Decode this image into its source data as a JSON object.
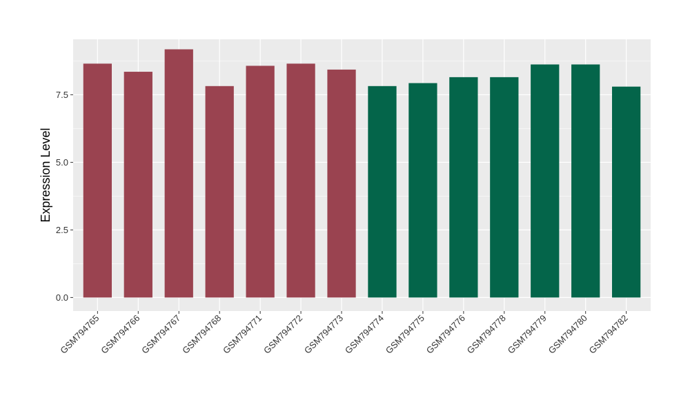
{
  "chart_data": {
    "type": "bar",
    "ylabel": "Expression Level",
    "xlabel": "",
    "categories": [
      "GSM794765",
      "GSM794766",
      "GSM794767",
      "GSM794768",
      "GSM794771",
      "GSM794772",
      "GSM794773",
      "GSM794774",
      "GSM794775",
      "GSM794776",
      "GSM794778",
      "GSM794779",
      "GSM794780",
      "GSM794782"
    ],
    "values": [
      8.65,
      8.35,
      9.18,
      7.82,
      8.57,
      8.65,
      8.43,
      7.82,
      7.93,
      8.15,
      8.15,
      8.62,
      8.62,
      7.8
    ],
    "bar_colors": [
      "#9a4350",
      "#9a4350",
      "#9a4350",
      "#9a4350",
      "#9a4350",
      "#9a4350",
      "#9a4350",
      "#04654a",
      "#04654a",
      "#04654a",
      "#04654a",
      "#04654a",
      "#04654a",
      "#04654a"
    ],
    "ylim": [
      -0.5,
      9.55
    ],
    "y_ticks": [
      0.0,
      2.5,
      5.0,
      7.5
    ],
    "y_tick_labels": [
      "0.0",
      "2.5",
      "5.0",
      "7.5"
    ],
    "grid": true,
    "panel_background": "#ebebeb",
    "grid_color": "#ffffff"
  }
}
